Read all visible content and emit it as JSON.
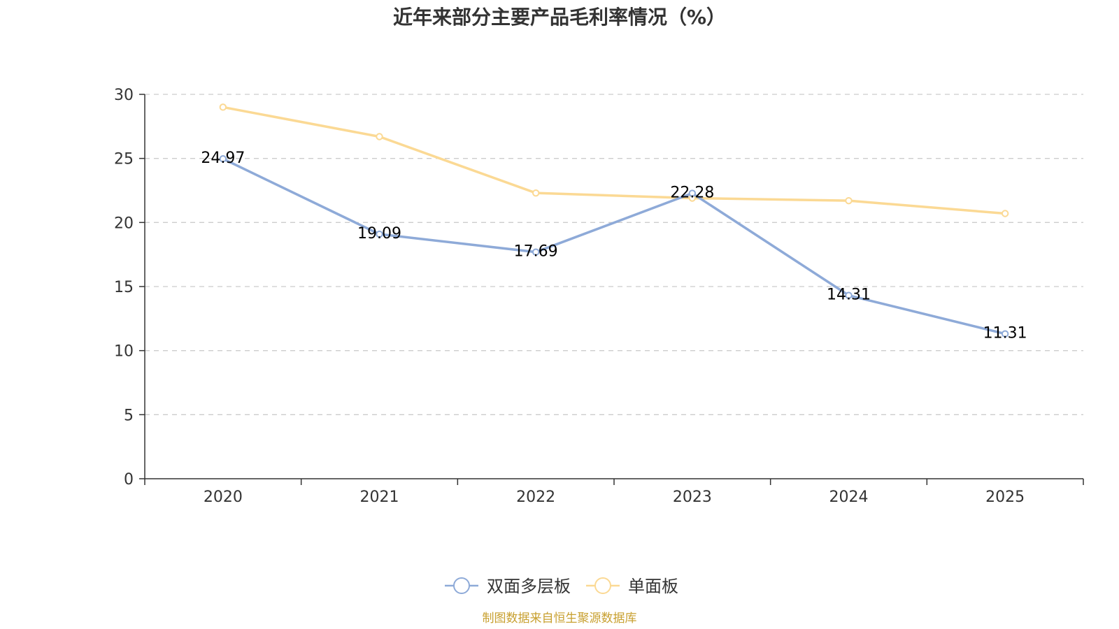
{
  "chart_data": {
    "type": "line",
    "title": "近年来部分主要产品毛利率情况（%）",
    "categories": [
      "2020",
      "2021",
      "2022",
      "2023",
      "2024",
      "2025"
    ],
    "series": [
      {
        "name": "双面多层板",
        "values": [
          24.97,
          19.09,
          17.69,
          22.28,
          14.31,
          11.31
        ],
        "color": "#8eaad8",
        "show_labels": true,
        "labels": [
          "24.97",
          "19.09",
          "17.69",
          "22.28",
          "14.31",
          "11.31"
        ]
      },
      {
        "name": "单面板",
        "values": [
          29.0,
          26.7,
          22.3,
          21.9,
          21.7,
          20.7
        ],
        "color": "#fbd994",
        "show_labels": false
      }
    ],
    "ylim": [
      0,
      30
    ],
    "yticks": [
      "0",
      "5",
      "10",
      "15",
      "20",
      "25",
      "30"
    ],
    "xlabel": "",
    "ylabel": "",
    "grid": true,
    "legend_position": "bottom-center"
  },
  "footer": {
    "source": "制图数据来自恒生聚源数据库",
    "source_color": "#c8a030"
  }
}
